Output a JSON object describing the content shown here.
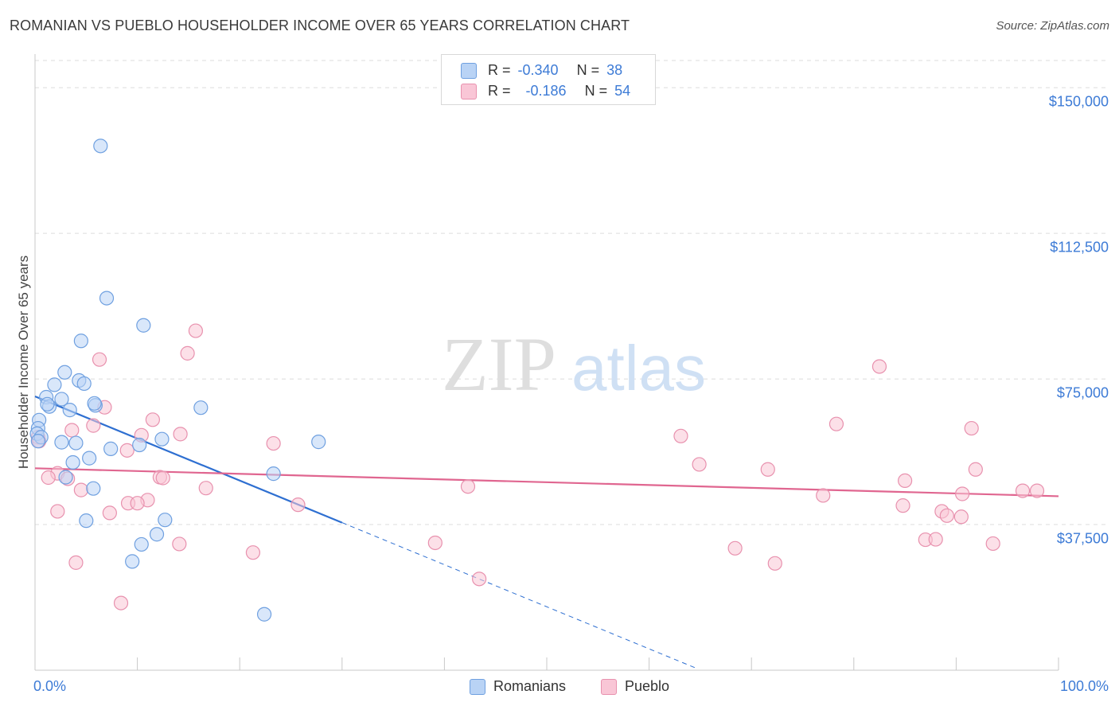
{
  "title": "ROMANIAN VS PUEBLO HOUSEHOLDER INCOME OVER 65 YEARS CORRELATION CHART",
  "source": "Source: ZipAtlas.com",
  "watermark": {
    "zip": "ZIP",
    "atlas": "atlas"
  },
  "legend": {
    "rows": [
      {
        "r_label": "R =",
        "r_value": "-0.340",
        "n_label": "N =",
        "n_value": "38"
      },
      {
        "r_label": "R =",
        "r_value": "-0.186",
        "n_label": "N =",
        "n_value": "54"
      }
    ]
  },
  "colors": {
    "romanians_fill": "#b9d3f5",
    "romanians_stroke": "#6fa0e0",
    "romanians_line": "#2e6fd1",
    "pueblo_fill": "#f9c6d6",
    "pueblo_stroke": "#e891ae",
    "pueblo_line": "#e06690",
    "tick_text": "#3d7bd6",
    "grid": "#dcdcdc"
  },
  "chart_data": {
    "type": "scatter",
    "title": "ROMANIAN VS PUEBLO HOUSEHOLDER INCOME OVER 65 YEARS CORRELATION CHART",
    "xlabel": "",
    "ylabel": "Householder Income Over 65 years",
    "xlim": [
      0,
      100
    ],
    "ylim": [
      0,
      157000
    ],
    "y_ticks": [
      37500,
      75000,
      112500,
      150000
    ],
    "y_tick_labels": [
      "$37,500",
      "$75,000",
      "$112,500",
      "$150,000"
    ],
    "x_tick_labels": [
      "0.0%",
      "100.0%"
    ],
    "series": [
      {
        "name": "Romanians",
        "r": -0.34,
        "n": 38,
        "trend": {
          "x0": 0,
          "y0": 70500,
          "x1": 30,
          "y1": 38000,
          "dash_x1": 64.5
        },
        "points": [
          [
            6.4,
            135000
          ],
          [
            7.0,
            95800
          ],
          [
            10.6,
            88800
          ],
          [
            4.5,
            84800
          ],
          [
            2.9,
            76700
          ],
          [
            4.3,
            74600
          ],
          [
            1.9,
            73500
          ],
          [
            4.8,
            73800
          ],
          [
            1.1,
            70300
          ],
          [
            1.4,
            67900
          ],
          [
            2.6,
            69800
          ],
          [
            1.2,
            68500
          ],
          [
            5.9,
            68200
          ],
          [
            5.8,
            68700
          ],
          [
            16.2,
            67600
          ],
          [
            3.4,
            67000
          ],
          [
            0.4,
            64400
          ],
          [
            0.3,
            62300
          ],
          [
            0.2,
            60900
          ],
          [
            0.6,
            60000
          ],
          [
            0.3,
            59000
          ],
          [
            2.6,
            58700
          ],
          [
            4.0,
            58500
          ],
          [
            12.4,
            59500
          ],
          [
            10.2,
            58000
          ],
          [
            27.7,
            58800
          ],
          [
            7.4,
            57000
          ],
          [
            5.3,
            54600
          ],
          [
            3.7,
            53500
          ],
          [
            3.0,
            49700
          ],
          [
            23.3,
            50600
          ],
          [
            5.7,
            46800
          ],
          [
            12.7,
            38700
          ],
          [
            5.0,
            38500
          ],
          [
            11.9,
            35000
          ],
          [
            10.4,
            32400
          ],
          [
            9.5,
            28000
          ],
          [
            22.4,
            14400
          ]
        ]
      },
      {
        "name": "Pueblo",
        "r": -0.186,
        "n": 54,
        "trend": {
          "x0": 0,
          "y0": 52000,
          "x1": 100,
          "y1": 44800
        },
        "points": [
          [
            15.7,
            87400
          ],
          [
            14.9,
            81600
          ],
          [
            6.3,
            80000
          ],
          [
            82.5,
            78200
          ],
          [
            6.8,
            67700
          ],
          [
            11.5,
            64500
          ],
          [
            78.3,
            63400
          ],
          [
            91.5,
            62300
          ],
          [
            5.7,
            63000
          ],
          [
            3.6,
            61800
          ],
          [
            14.2,
            60800
          ],
          [
            10.4,
            60500
          ],
          [
            0.3,
            60000
          ],
          [
            63.1,
            60300
          ],
          [
            0.4,
            59000
          ],
          [
            23.3,
            58400
          ],
          [
            9.0,
            56600
          ],
          [
            64.9,
            53000
          ],
          [
            71.6,
            51700
          ],
          [
            91.9,
            51700
          ],
          [
            2.2,
            50700
          ],
          [
            1.3,
            49600
          ],
          [
            12.2,
            49700
          ],
          [
            12.5,
            49500
          ],
          [
            3.2,
            49300
          ],
          [
            85.0,
            48800
          ],
          [
            42.3,
            47300
          ],
          [
            16.7,
            46900
          ],
          [
            4.5,
            46400
          ],
          [
            96.5,
            46200
          ],
          [
            97.9,
            46200
          ],
          [
            90.6,
            45400
          ],
          [
            77.0,
            45000
          ],
          [
            11.0,
            43800
          ],
          [
            9.1,
            43000
          ],
          [
            10.0,
            43000
          ],
          [
            25.7,
            42600
          ],
          [
            84.8,
            42400
          ],
          [
            2.2,
            40900
          ],
          [
            7.3,
            40500
          ],
          [
            88.6,
            40900
          ],
          [
            89.1,
            39800
          ],
          [
            90.5,
            39500
          ],
          [
            87.0,
            33600
          ],
          [
            88.0,
            33700
          ],
          [
            39.1,
            32800
          ],
          [
            14.1,
            32500
          ],
          [
            93.6,
            32600
          ],
          [
            68.4,
            31400
          ],
          [
            21.3,
            30300
          ],
          [
            4.0,
            27700
          ],
          [
            72.3,
            27500
          ],
          [
            43.4,
            23500
          ],
          [
            8.4,
            17300
          ]
        ]
      }
    ]
  },
  "bottom_legend": {
    "romanians": "Romanians",
    "pueblo": "Pueblo"
  }
}
